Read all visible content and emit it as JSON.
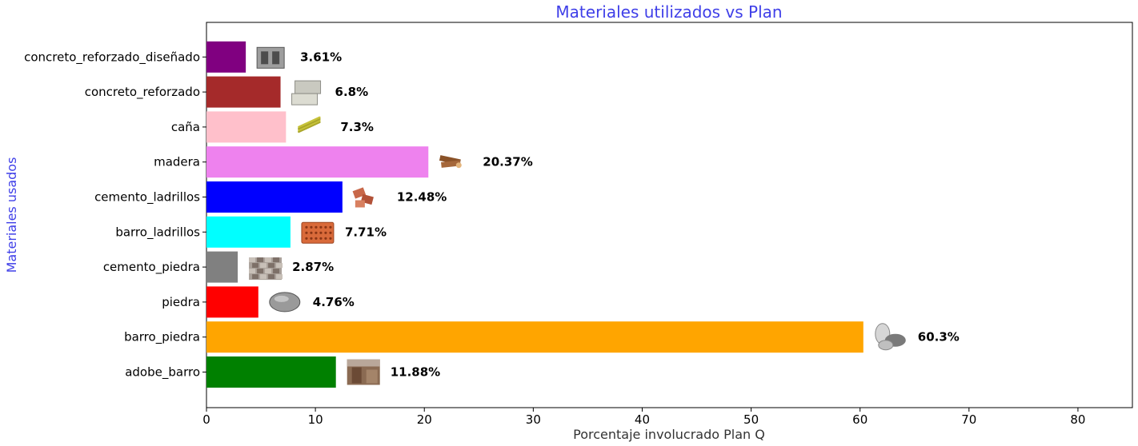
{
  "chart_data": {
    "type": "bar",
    "orientation": "horizontal",
    "title": "Materiales utilizados vs Plan",
    "xlabel": "Porcentaje involucrado Plan Q",
    "ylabel": "Materiales usados",
    "xlim": [
      0,
      85
    ],
    "xticks": [
      0,
      10,
      20,
      30,
      40,
      50,
      60,
      70,
      80
    ],
    "grid": false,
    "categories": [
      "adobe_barro",
      "barro_piedra",
      "piedra",
      "cemento_piedra",
      "barro_ladrillos",
      "cemento_ladrillos",
      "madera",
      "caña",
      "concreto_reforzado",
      "concreto_reforzado_diseñado"
    ],
    "values": [
      11.88,
      60.3,
      4.76,
      2.87,
      7.71,
      12.48,
      20.37,
      7.3,
      6.8,
      3.61
    ],
    "value_labels": [
      "11.88%",
      "60.3%",
      "4.76%",
      "2.87%",
      "7.71%",
      "12.48%",
      "20.37%",
      "7.3%",
      "6.8%",
      "3.61%"
    ],
    "colors": [
      "#008000",
      "#FFA500",
      "#FF0000",
      "#808080",
      "#00FFFF",
      "#0000FF",
      "#EE82EE",
      "#FFC0CB",
      "#A52A2A",
      "#800080"
    ],
    "icons": [
      "adobe-wall-icon",
      "river-stones-icon",
      "rock-icon",
      "stone-wall-icon",
      "clay-brick-icon",
      "cement-bricks-icon",
      "wood-logs-icon",
      "cane-icon",
      "concrete-blocks-icon",
      "designed-concrete-block-icon"
    ],
    "title_color": "#3F3FE8",
    "ylabel_color": "#3F3FE8",
    "xlabel_color": "#333333"
  }
}
